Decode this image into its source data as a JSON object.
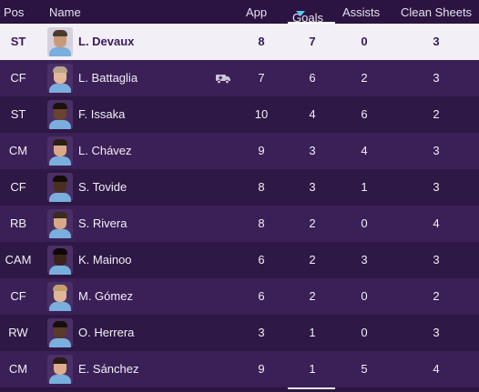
{
  "header": {
    "pos": "Pos",
    "name": "Name",
    "app": "App",
    "goals": "Goals",
    "assists": "Assists",
    "clean_sheets": "Clean Sheets",
    "sort_icon": "sort-descending-icon"
  },
  "colors": {
    "background": "#2a1640",
    "row_odd": "#3a2056",
    "row_even": "#2e1845",
    "selected_row": "#f2eff6",
    "selected_text": "#3a1a5c",
    "sort_accent": "#5bc6f0"
  },
  "players": [
    {
      "pos": "ST",
      "name": "L. Devaux",
      "app": "8",
      "goals": "7",
      "assists": "0",
      "clean_sheets": "3",
      "selected": true,
      "skin": "#c99a78",
      "hair": "#4a3a2e",
      "shirt": "#7aaedc"
    },
    {
      "pos": "CF",
      "name": "L. Battaglia",
      "app": "7",
      "goals": "6",
      "assists": "2",
      "clean_sheets": "3",
      "skin": "#e3b899",
      "hair": "#b8a58a",
      "shirt": "#7aaedc",
      "icon": "injury-ambulance-icon"
    },
    {
      "pos": "ST",
      "name": "F. Issaka",
      "app": "10",
      "goals": "4",
      "assists": "6",
      "clean_sheets": "2",
      "skin": "#6a4430",
      "hair": "#1c120c",
      "shirt": "#7aaedc"
    },
    {
      "pos": "CM",
      "name": "L. Chávez",
      "app": "9",
      "goals": "3",
      "assists": "4",
      "clean_sheets": "3",
      "skin": "#d9a988",
      "hair": "#2a1e16",
      "shirt": "#7aaedc"
    },
    {
      "pos": "CF",
      "name": "S. Tovide",
      "app": "8",
      "goals": "3",
      "assists": "1",
      "clean_sheets": "3",
      "skin": "#4a2e20",
      "hair": "#140c08",
      "shirt": "#7aaedc"
    },
    {
      "pos": "RB",
      "name": "S. Rivera",
      "app": "8",
      "goals": "2",
      "assists": "0",
      "clean_sheets": "4",
      "skin": "#d8a889",
      "hair": "#3a2a20",
      "shirt": "#7aaedc"
    },
    {
      "pos": "CAM",
      "name": "K. Mainoo",
      "app": "6",
      "goals": "2",
      "assists": "3",
      "clean_sheets": "3",
      "skin": "#3a2418",
      "hair": "#0e0806",
      "shirt": "#7aaedc"
    },
    {
      "pos": "CF",
      "name": "M. Gómez",
      "app": "6",
      "goals": "2",
      "assists": "0",
      "clean_sheets": "2",
      "skin": "#e0b698",
      "hair": "#c2a070",
      "shirt": "#7aaedc"
    },
    {
      "pos": "RW",
      "name": "O. Herrera",
      "app": "3",
      "goals": "1",
      "assists": "0",
      "clean_sheets": "3",
      "skin": "#5a3a28",
      "hair": "#16100a",
      "shirt": "#7aaedc"
    },
    {
      "pos": "CM",
      "name": "E. Sánchez",
      "app": "9",
      "goals": "1",
      "assists": "5",
      "clean_sheets": "4",
      "skin": "#dcae8e",
      "hair": "#2a1c14",
      "shirt": "#7aaedc"
    }
  ]
}
